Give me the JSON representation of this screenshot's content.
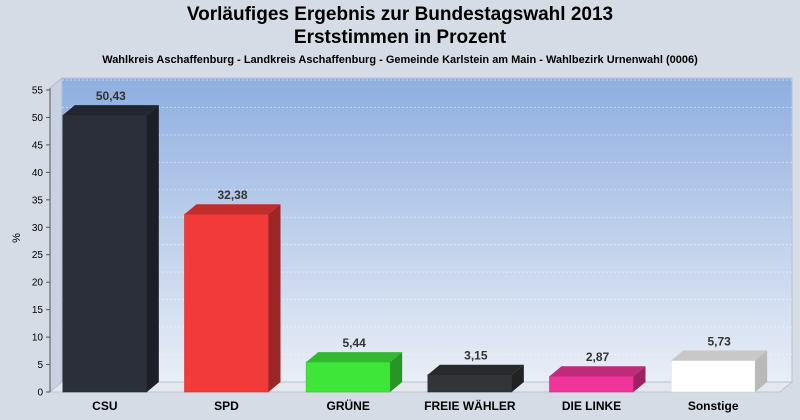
{
  "chart_data": {
    "type": "bar",
    "title": "Vorläufiges Ergebnis zur Bundestagswahl 2013",
    "subtitle_line": "Erststimmen in Prozent",
    "subtitle": "Wahlkreis Aschaffenburg - Landkreis Aschaffenburg - Gemeinde Karlstein am Main - Wahlbezirk Urnenwahl (0006)",
    "ylabel": "%",
    "ylim": [
      0,
      55
    ],
    "yticks": [
      0,
      5,
      10,
      15,
      20,
      25,
      30,
      35,
      40,
      45,
      50,
      55
    ],
    "categories": [
      "CSU",
      "SPD",
      "GRÜNE",
      "FREIE WÄHLER",
      "DIE LINKE",
      "Sonstige"
    ],
    "values": [
      50.43,
      32.38,
      5.44,
      3.15,
      2.87,
      5.73
    ],
    "value_labels": [
      "50,43",
      "32,38",
      "5,44",
      "3,15",
      "2,87",
      "5,73"
    ],
    "colors": [
      "#2b2f3a",
      "#f23a3a",
      "#3ee63a",
      "#333438",
      "#f0359a",
      "#ffffff"
    ],
    "grid": true,
    "legend": "none"
  }
}
